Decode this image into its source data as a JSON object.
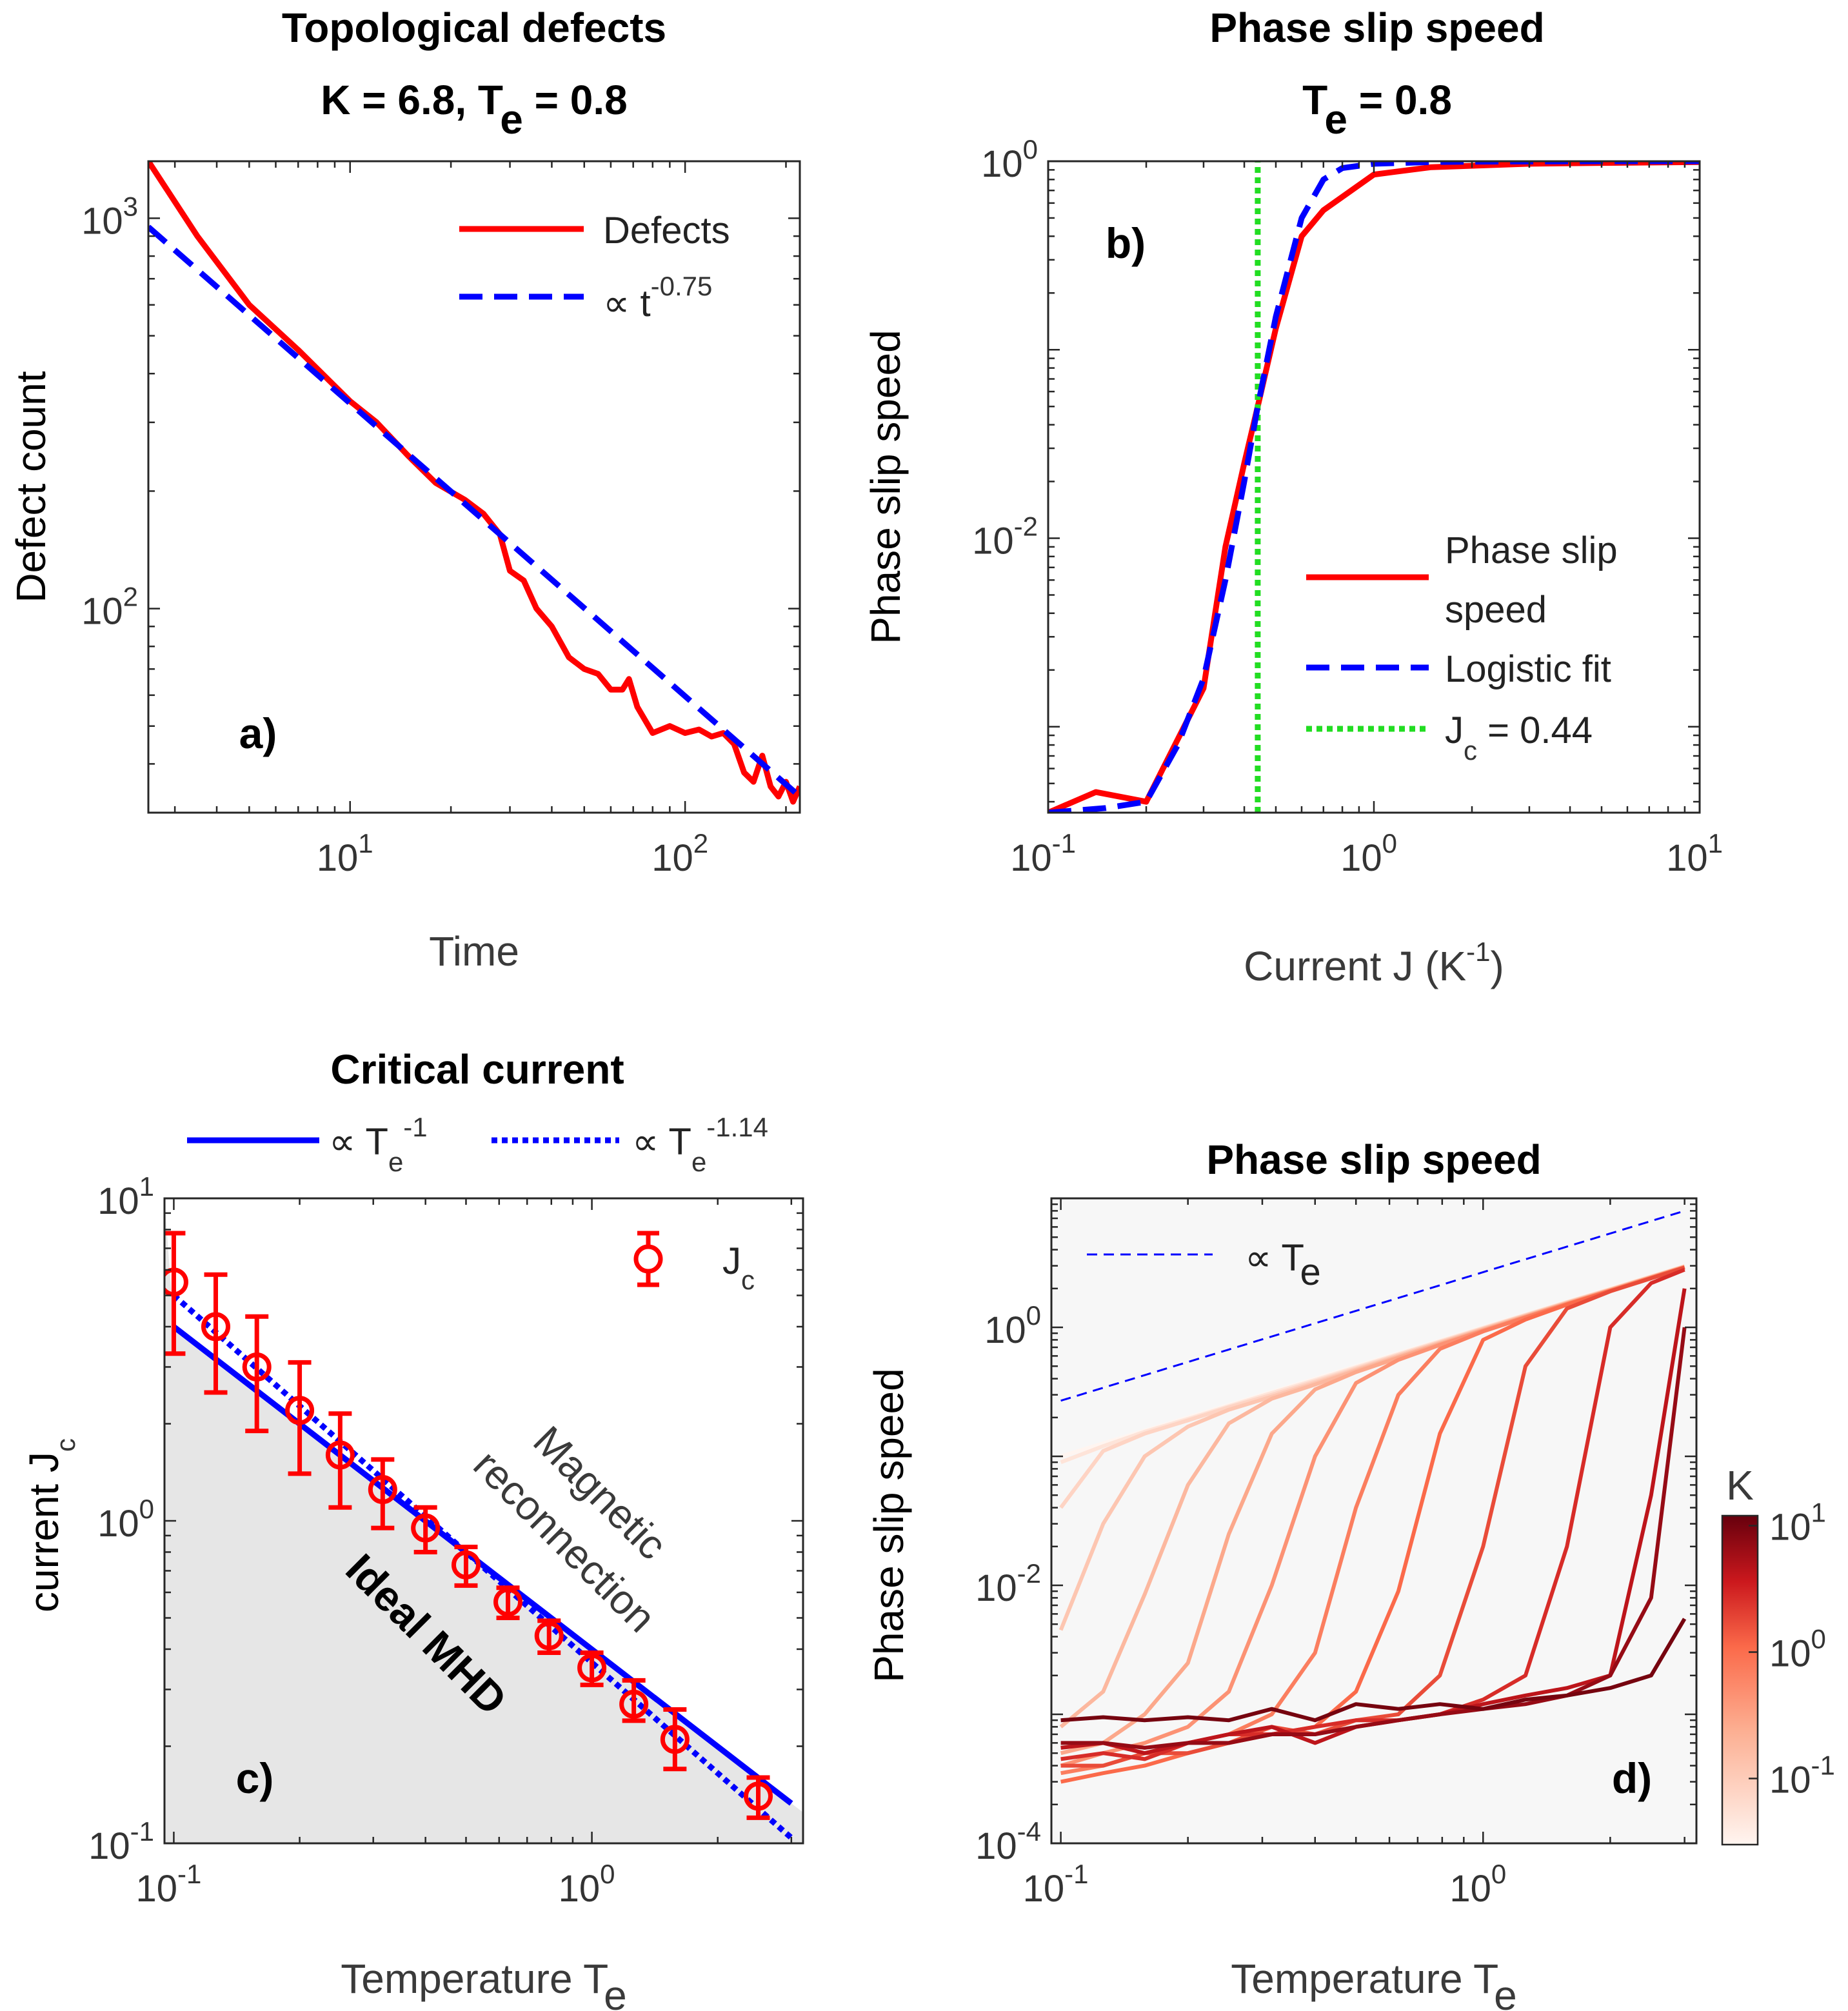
{
  "chart_data": [
    {
      "id": "a",
      "type": "line",
      "panel_label": "a)",
      "title": "Topological defects",
      "subtitle": "K = 6.8, T_e = 0.8",
      "xlabel": "Time",
      "ylabel": "Defect count",
      "xscale": "log",
      "yscale": "log",
      "xlim": [
        2.5,
        220
      ],
      "ylim": [
        30,
        1400
      ],
      "x_ticks": [
        {
          "label": "10",
          "exp": "1"
        },
        {
          "label": "10",
          "exp": "2"
        }
      ],
      "y_ticks": [
        {
          "label": "10",
          "exp": "2"
        },
        {
          "label": "10",
          "exp": "3"
        }
      ],
      "legend_position": "top-right",
      "series": [
        {
          "name": "Defects",
          "color": "#ff0000",
          "style": "solid",
          "x": [
            2.5,
            3.5,
            5,
            7,
            10,
            12,
            15,
            18,
            22,
            25,
            28,
            30,
            33,
            36,
            40,
            45,
            50,
            55,
            60,
            65,
            68,
            72,
            80,
            90,
            100,
            110,
            120,
            130,
            140,
            150,
            160,
            170,
            180,
            190,
            200,
            210,
            220
          ],
          "y": [
            1400,
            900,
            600,
            460,
            340,
            300,
            245,
            210,
            190,
            175,
            155,
            125,
            118,
            100,
            90,
            75,
            70,
            68,
            62,
            62,
            66,
            56,
            48,
            50,
            48,
            49,
            47,
            48,
            45,
            38,
            36,
            42,
            35,
            33,
            36,
            32,
            35
          ]
        },
        {
          "name": "∝ t^-0.75",
          "legend_text": "∝ t",
          "legend_exp": "-0.75",
          "color": "#0000ff",
          "style": "dashed",
          "x": [
            2.5,
            220
          ],
          "y": [
            950,
            33
          ]
        }
      ]
    },
    {
      "id": "b",
      "type": "line",
      "panel_label": "b)",
      "title": "Phase slip speed",
      "subtitle": "T_e = 0.8",
      "xlabel": "Current J (K^-1)",
      "ylabel": "Phase slip speed",
      "xscale": "log",
      "yscale": "log",
      "xlim": [
        0.1,
        10
      ],
      "ylim": [
        0.00035,
        1
      ],
      "x_ticks": [
        {
          "label": "10",
          "exp": "-1"
        },
        {
          "label": "10",
          "exp": "0"
        },
        {
          "label": "10",
          "exp": "1"
        }
      ],
      "y_ticks": [
        {
          "label": "10",
          "exp": "-2"
        },
        {
          "label": "10",
          "exp": "0"
        }
      ],
      "legend_position": "lower-right",
      "series": [
        {
          "name": "Phase slip speed",
          "legend_lines": [
            "Phase slip",
            "speed"
          ],
          "color": "#ff0000",
          "style": "solid",
          "x": [
            0.1,
            0.14,
            0.2,
            0.3,
            0.35,
            0.4,
            0.44,
            0.5,
            0.6,
            0.7,
            1.0,
            1.5,
            3,
            5,
            10
          ],
          "y": [
            0.00035,
            0.00045,
            0.0004,
            0.0016,
            0.009,
            0.025,
            0.05,
            0.13,
            0.4,
            0.55,
            0.85,
            0.93,
            0.97,
            0.98,
            0.99
          ]
        },
        {
          "name": "Logistic fit",
          "color": "#0000ff",
          "style": "dashed",
          "x": [
            0.1,
            0.15,
            0.2,
            0.25,
            0.3,
            0.35,
            0.4,
            0.44,
            0.5,
            0.6,
            0.7,
            0.8,
            1.0,
            1.5,
            2,
            5,
            10
          ],
          "y": [
            0.00035,
            0.00037,
            0.0004,
            0.0008,
            0.0018,
            0.006,
            0.02,
            0.05,
            0.15,
            0.5,
            0.8,
            0.92,
            0.97,
            0.99,
            0.995,
            1.0,
            1.0
          ]
        },
        {
          "name": "J_c = 0.44",
          "legend_text": "J",
          "legend_sub": "c",
          "legend_tail": " = 0.44",
          "color": "#22dd22",
          "style": "dotted",
          "x": [
            0.44,
            0.44
          ],
          "y": [
            0.00035,
            1
          ]
        }
      ]
    },
    {
      "id": "c",
      "type": "scatter",
      "panel_label": "c)",
      "title": "Critical current",
      "xlabel": "Temperature T_e",
      "ylabel": "current J_c",
      "xscale": "log",
      "yscale": "log",
      "xlim": [
        0.095,
        3.2
      ],
      "ylim": [
        0.1,
        10
      ],
      "x_ticks": [
        {
          "label": "10",
          "exp": "-1"
        },
        {
          "label": "10",
          "exp": "0"
        }
      ],
      "y_ticks": [
        {
          "label": "10",
          "exp": "-1"
        },
        {
          "label": "10",
          "exp": "0"
        },
        {
          "label": "10",
          "exp": "1"
        }
      ],
      "region_labels": {
        "upper": [
          "Magnetic",
          "reconnection"
        ],
        "lower": "Ideal MHD"
      },
      "legend_position": "top-right and above axes",
      "series": [
        {
          "name": "J_c",
          "legend_text": "J",
          "legend_sub": "c",
          "color": "#ff0000",
          "style": "markers",
          "x": [
            0.1,
            0.126,
            0.158,
            0.2,
            0.25,
            0.316,
            0.4,
            0.5,
            0.63,
            0.79,
            1.0,
            1.26,
            1.58,
            2.5
          ],
          "y": [
            5.5,
            4.0,
            3.0,
            2.2,
            1.6,
            1.25,
            0.95,
            0.73,
            0.56,
            0.44,
            0.35,
            0.27,
            0.21,
            0.14
          ],
          "err_low": [
            2.2,
            1.5,
            1.1,
            0.8,
            0.5,
            0.3,
            0.15,
            0.1,
            0.06,
            0.05,
            0.04,
            0.03,
            0.04,
            0.02
          ],
          "err_high": [
            2.3,
            1.8,
            1.3,
            0.9,
            0.55,
            0.3,
            0.15,
            0.1,
            0.06,
            0.05,
            0.04,
            0.05,
            0.05,
            0.02
          ]
        },
        {
          "name": "∝ T_e^-1",
          "legend_text": "∝ T",
          "legend_sub": "e",
          "legend_exp": "-1",
          "color": "#0000ff",
          "style": "solid",
          "x": [
            0.1,
            3.0
          ],
          "y": [
            4.0,
            0.133
          ]
        },
        {
          "name": "∝ T_e^-1.14",
          "legend_text": "∝ T",
          "legend_sub": "e",
          "legend_exp": "-1.14",
          "color": "#0000ff",
          "style": "dotted",
          "x": [
            0.1,
            3.0
          ],
          "y": [
            5.0,
            0.104
          ]
        }
      ]
    },
    {
      "id": "d",
      "type": "line",
      "panel_label": "d)",
      "title": "Phase slip speed",
      "xlabel": "Temperature T_e",
      "ylabel": "Phase slip speed",
      "xscale": "log",
      "yscale": "log",
      "xlim": [
        0.095,
        3.2
      ],
      "ylim": [
        0.0001,
        10
      ],
      "x_ticks": [
        {
          "label": "10",
          "exp": "-1"
        },
        {
          "label": "10",
          "exp": "0"
        }
      ],
      "y_ticks": [
        {
          "label": "10",
          "exp": "-4"
        },
        {
          "label": "10",
          "exp": "-2"
        },
        {
          "label": "10",
          "exp": "0"
        }
      ],
      "legend_position": "top-left",
      "reference": {
        "name": "∝ T_e",
        "legend_text": "∝ T",
        "legend_sub": "e",
        "color": "#0000ff",
        "style": "dashed",
        "x": [
          0.1,
          3.0
        ],
        "y": [
          0.27,
          8.0
        ]
      },
      "colorbar": {
        "label": "K",
        "scale": "log",
        "range": [
          0.03,
          12
        ],
        "colormap": "white-to-darkred",
        "ticks": [
          {
            "label": "10",
            "exp": "-1"
          },
          {
            "label": "10",
            "exp": "0"
          },
          {
            "label": "10",
            "exp": "1"
          }
        ]
      },
      "x_grid": [
        0.1,
        0.126,
        0.158,
        0.2,
        0.25,
        0.316,
        0.4,
        0.5,
        0.63,
        0.79,
        1.0,
        1.26,
        1.58,
        2.0,
        2.5,
        3.0
      ],
      "series": [
        {
          "name": "K = 0.03",
          "K": 0.03,
          "y": [
            0.1,
            0.126,
            0.158,
            0.2,
            0.25,
            0.316,
            0.4,
            0.5,
            0.63,
            0.79,
            1.0,
            1.26,
            1.58,
            2.0,
            2.5,
            3.0
          ]
        },
        {
          "name": "K = 0.05",
          "K": 0.05,
          "y": [
            0.09,
            0.12,
            0.155,
            0.195,
            0.245,
            0.31,
            0.39,
            0.49,
            0.62,
            0.78,
            0.99,
            1.25,
            1.57,
            1.98,
            2.48,
            2.98
          ]
        },
        {
          "name": "K = 0.08",
          "K": 0.08,
          "y": [
            0.04,
            0.11,
            0.15,
            0.19,
            0.24,
            0.3,
            0.38,
            0.48,
            0.61,
            0.77,
            0.98,
            1.24,
            1.56,
            1.97,
            2.47,
            2.97
          ]
        },
        {
          "name": "K = 0.12",
          "K": 0.12,
          "y": [
            0.0045,
            0.03,
            0.1,
            0.17,
            0.23,
            0.29,
            0.37,
            0.47,
            0.6,
            0.76,
            0.97,
            1.23,
            1.55,
            1.96,
            2.46,
            2.96
          ]
        },
        {
          "name": "K = 0.18",
          "K": 0.18,
          "y": [
            0.0008,
            0.0015,
            0.0085,
            0.06,
            0.18,
            0.28,
            0.36,
            0.46,
            0.59,
            0.75,
            0.96,
            1.22,
            1.54,
            1.95,
            2.45,
            2.95
          ]
        },
        {
          "name": "K = 0.28",
          "K": 0.28,
          "y": [
            0.0005,
            0.0006,
            0.001,
            0.0025,
            0.025,
            0.15,
            0.33,
            0.45,
            0.58,
            0.74,
            0.95,
            1.21,
            1.53,
            1.94,
            2.44,
            2.94
          ]
        },
        {
          "name": "K = 0.45",
          "K": 0.45,
          "y": [
            0.0004,
            0.0005,
            0.0006,
            0.0008,
            0.0015,
            0.01,
            0.1,
            0.37,
            0.56,
            0.73,
            0.94,
            1.2,
            1.52,
            1.93,
            2.43,
            2.93
          ]
        },
        {
          "name": "K = 0.7",
          "K": 0.7,
          "y": [
            0.00035,
            0.0004,
            0.0005,
            0.0006,
            0.0007,
            0.001,
            0.003,
            0.04,
            0.3,
            0.68,
            0.93,
            1.19,
            1.51,
            1.92,
            2.42,
            2.92
          ]
        },
        {
          "name": "K = 1.1",
          "K": 1.1,
          "y": [
            0.0003,
            0.00035,
            0.0004,
            0.0005,
            0.0006,
            0.0007,
            0.0008,
            0.0015,
            0.009,
            0.15,
            0.8,
            1.15,
            1.5,
            1.91,
            2.41,
            2.91
          ]
        },
        {
          "name": "K = 1.7",
          "K": 1.7,
          "y": [
            0.0004,
            0.0004,
            0.0005,
            0.0005,
            0.0006,
            0.0008,
            0.0007,
            0.0009,
            0.001,
            0.002,
            0.02,
            0.5,
            1.4,
            1.9,
            2.4,
            2.9
          ]
        },
        {
          "name": "K = 2.7",
          "K": 2.7,
          "y": [
            0.00045,
            0.0005,
            0.00045,
            0.0006,
            0.0007,
            0.0007,
            0.0008,
            0.0009,
            0.0009,
            0.001,
            0.0013,
            0.002,
            0.02,
            1.0,
            2.2,
            2.8
          ]
        },
        {
          "name": "K = 4.3",
          "K": 4.3,
          "y": [
            0.00055,
            0.0006,
            0.0005,
            0.0006,
            0.0007,
            0.0008,
            0.0006,
            0.0008,
            0.0009,
            0.001,
            0.0012,
            0.0014,
            0.0016,
            0.002,
            0.05,
            2.0
          ]
        },
        {
          "name": "K = 6.8",
          "K": 6.8,
          "y": [
            0.0006,
            0.0006,
            0.00055,
            0.0006,
            0.0006,
            0.0007,
            0.0007,
            0.0008,
            0.0009,
            0.001,
            0.0011,
            0.0012,
            0.0014,
            0.002,
            0.008,
            1.0
          ]
        },
        {
          "name": "K = 10",
          "K": 10,
          "y": [
            0.0009,
            0.00095,
            0.0009,
            0.00095,
            0.0009,
            0.0011,
            0.0009,
            0.0012,
            0.0011,
            0.0012,
            0.0011,
            0.0013,
            0.0014,
            0.0016,
            0.002,
            0.0055
          ]
        }
      ]
    }
  ]
}
